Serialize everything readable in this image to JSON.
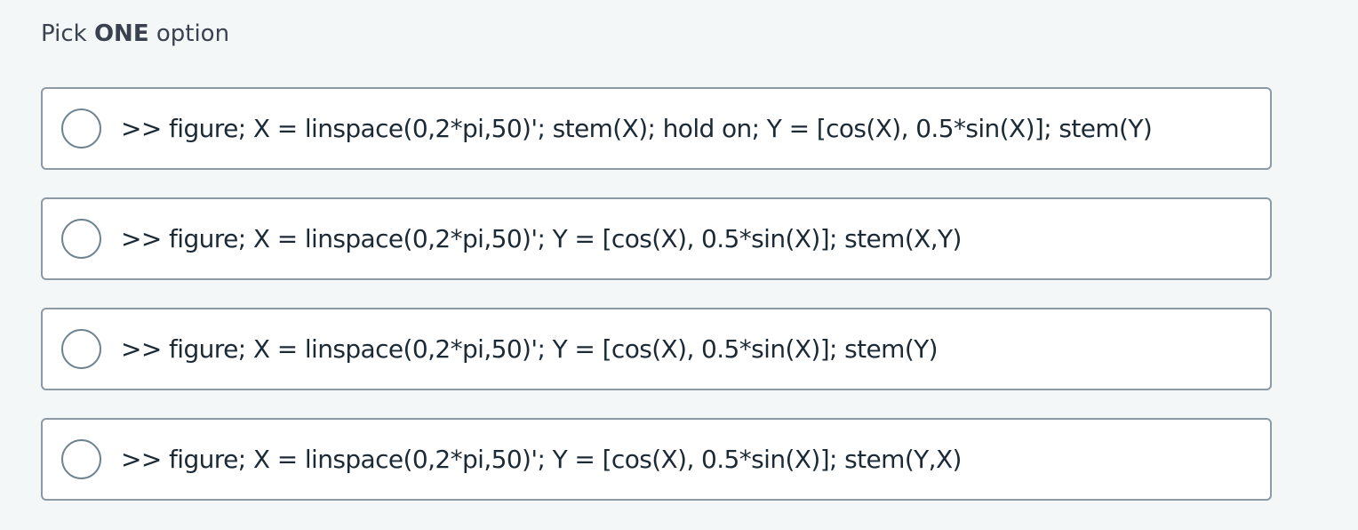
{
  "prompt": {
    "prefix": "Pick ",
    "emphasis": "ONE",
    "suffix": " option"
  },
  "options": [
    {
      "label": ">> figure; X = linspace(0,2*pi,50)'; stem(X); hold on; Y = [cos(X), 0.5*sin(X)]; stem(Y)",
      "selected": false
    },
    {
      "label": ">> figure; X = linspace(0,2*pi,50)'; Y = [cos(X), 0.5*sin(X)]; stem(X,Y)",
      "selected": false
    },
    {
      "label": ">> figure; X = linspace(0,2*pi,50)'; Y = [cos(X), 0.5*sin(X)]; stem(Y)",
      "selected": false
    },
    {
      "label": ">> figure; X = linspace(0,2*pi,50)'; Y = [cos(X), 0.5*sin(X)]; stem(Y,X)",
      "selected": false
    }
  ]
}
